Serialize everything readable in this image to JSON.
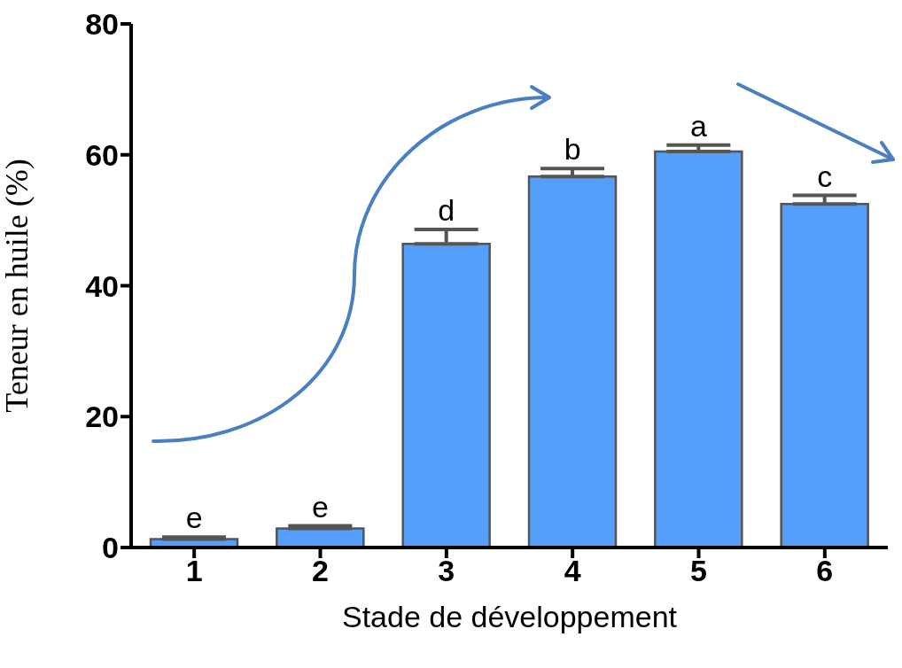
{
  "chart_data": {
    "type": "bar",
    "xlabel": "Stade de développement",
    "ylabel": "Teneur en huile (%)",
    "categories": [
      "1",
      "2",
      "3",
      "4",
      "5",
      "6"
    ],
    "values": [
      1.3,
      2.9,
      46.4,
      56.7,
      60.5,
      52.5
    ],
    "errors": [
      [
        1.3,
        1.6
      ],
      [
        2.9,
        3.3
      ],
      [
        46.4,
        48.6
      ],
      [
        56.7,
        57.9
      ],
      [
        60.5,
        61.5
      ],
      [
        52.5,
        53.8
      ]
    ],
    "color": "#559ffb",
    "ylim": [
      0,
      80
    ],
    "yticks": [
      0,
      20,
      40,
      60,
      80
    ],
    "grid": false,
    "legend": false,
    "annotations": [
      "e",
      "e",
      "d",
      "b",
      "a",
      "c"
    ]
  }
}
